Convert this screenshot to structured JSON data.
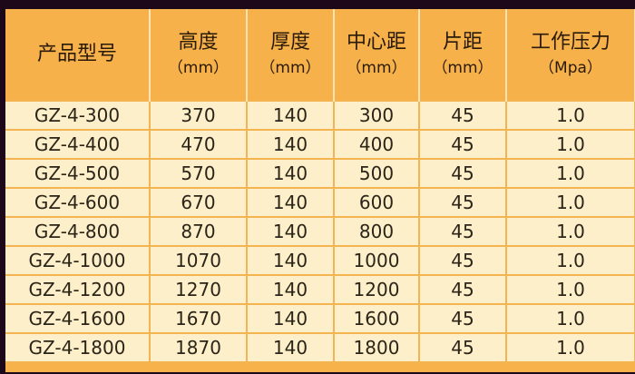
{
  "table": {
    "headers": [
      {
        "title": "产品型号",
        "unit": ""
      },
      {
        "title": "高度",
        "unit": "（mm）"
      },
      {
        "title": "厚度",
        "unit": "（mm）"
      },
      {
        "title": "中心距",
        "unit": "（mm）"
      },
      {
        "title": "片距",
        "unit": "（mm）"
      },
      {
        "title": "工作压力",
        "unit": "（Mpa）"
      }
    ],
    "rows": [
      [
        "GZ-4-300",
        "370",
        "140",
        "300",
        "45",
        "1.0"
      ],
      [
        "GZ-4-400",
        "470",
        "140",
        "400",
        "45",
        "1.0"
      ],
      [
        "GZ-4-500",
        "570",
        "140",
        "500",
        "45",
        "1.0"
      ],
      [
        "GZ-4-600",
        "670",
        "140",
        "600",
        "45",
        "1.0"
      ],
      [
        "GZ-4-800",
        "870",
        "140",
        "800",
        "45",
        "1.0"
      ],
      [
        "GZ-4-1000",
        "1070",
        "140",
        "1000",
        "45",
        "1.0"
      ],
      [
        "GZ-4-1200",
        "1270",
        "140",
        "1200",
        "45",
        "1.0"
      ],
      [
        "GZ-4-1600",
        "1670",
        "140",
        "1600",
        "45",
        "1.0"
      ],
      [
        "GZ-4-1800",
        "1870",
        "140",
        "1800",
        "45",
        "1.0"
      ]
    ]
  },
  "colors": {
    "header_bg": "#f6b14b",
    "row_bg": "#fcefc9",
    "grid": "#f3b451",
    "frame": "#1c0818"
  }
}
